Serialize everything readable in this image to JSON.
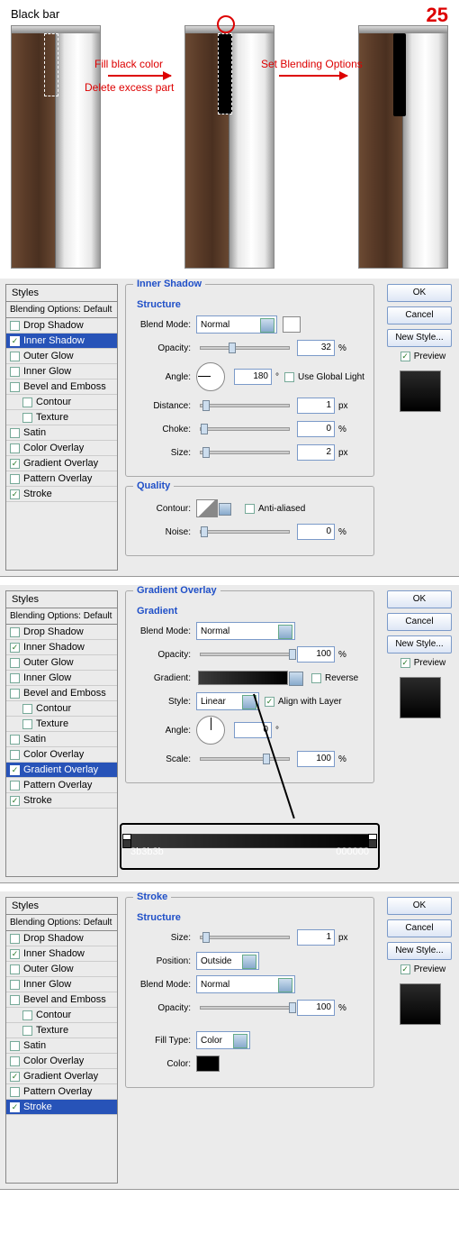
{
  "header": {
    "title": "Black bar",
    "step_num": "25"
  },
  "annotations": {
    "a1_line1": "Fill black color",
    "a1_line2": "Delete excess part",
    "a2": "Set Blending Options"
  },
  "styles_list": {
    "head": "Styles",
    "sub": "Blending Options: Default",
    "items": [
      {
        "label": "Drop Shadow",
        "checked": false,
        "indent": false
      },
      {
        "label": "Inner Shadow",
        "checked": true,
        "indent": false
      },
      {
        "label": "Outer Glow",
        "checked": false,
        "indent": false
      },
      {
        "label": "Inner Glow",
        "checked": false,
        "indent": false
      },
      {
        "label": "Bevel and Emboss",
        "checked": false,
        "indent": false
      },
      {
        "label": "Contour",
        "checked": false,
        "indent": true
      },
      {
        "label": "Texture",
        "checked": false,
        "indent": true
      },
      {
        "label": "Satin",
        "checked": false,
        "indent": false
      },
      {
        "label": "Color Overlay",
        "checked": false,
        "indent": false
      },
      {
        "label": "Gradient Overlay",
        "checked": true,
        "indent": false
      },
      {
        "label": "Pattern Overlay",
        "checked": false,
        "indent": false
      },
      {
        "label": "Stroke",
        "checked": true,
        "indent": false
      }
    ]
  },
  "right": {
    "ok": "OK",
    "cancel": "Cancel",
    "new_style": "New Style...",
    "preview": "Preview",
    "preview_checked": true
  },
  "panel1": {
    "title": "Inner Shadow",
    "sub1": "Structure",
    "blend_mode_lbl": "Blend Mode:",
    "blend_mode": "Normal",
    "opacity_lbl": "Opacity:",
    "opacity": "32",
    "opacity_unit": "%",
    "angle_lbl": "Angle:",
    "angle": "180",
    "angle_unit": "°",
    "global_light": "Use Global Light",
    "global_light_on": false,
    "distance_lbl": "Distance:",
    "distance": "1",
    "px": "px",
    "choke_lbl": "Choke:",
    "choke": "0",
    "choke_unit": "%",
    "size_lbl": "Size:",
    "size": "2",
    "sub2": "Quality",
    "contour_lbl": "Contour:",
    "aa": "Anti-aliased",
    "aa_on": false,
    "noise_lbl": "Noise:",
    "noise": "0",
    "noise_unit": "%",
    "swatch_color": "#ffffff",
    "selected_idx": 1
  },
  "panel2": {
    "title": "Gradient Overlay",
    "sub1": "Gradient",
    "blend_mode_lbl": "Blend Mode:",
    "blend_mode": "Normal",
    "opacity_lbl": "Opacity:",
    "opacity": "100",
    "opacity_unit": "%",
    "gradient_lbl": "Gradient:",
    "reverse": "Reverse",
    "reverse_on": false,
    "style_lbl": "Style:",
    "style": "Linear",
    "align": "Align with Layer",
    "align_on": true,
    "angle_lbl": "Angle:",
    "angle": "0",
    "angle_unit": "°",
    "scale_lbl": "Scale:",
    "scale": "100",
    "scale_unit": "%",
    "grad_from": "3b3b3b",
    "grad_to": "000000",
    "grad_from_hex": "#3b3b3b",
    "grad_to_hex": "#000000",
    "selected_idx": 9
  },
  "panel3": {
    "title": "Stroke",
    "sub1": "Structure",
    "size_lbl": "Size:",
    "size": "1",
    "px": "px",
    "position_lbl": "Position:",
    "position": "Outside",
    "blend_mode_lbl": "Blend Mode:",
    "blend_mode": "Normal",
    "opacity_lbl": "Opacity:",
    "opacity": "100",
    "opacity_unit": "%",
    "fill_type_lbl": "Fill Type:",
    "fill_type": "Color",
    "color_lbl": "Color:",
    "color": "#000000",
    "selected_idx": 11
  }
}
